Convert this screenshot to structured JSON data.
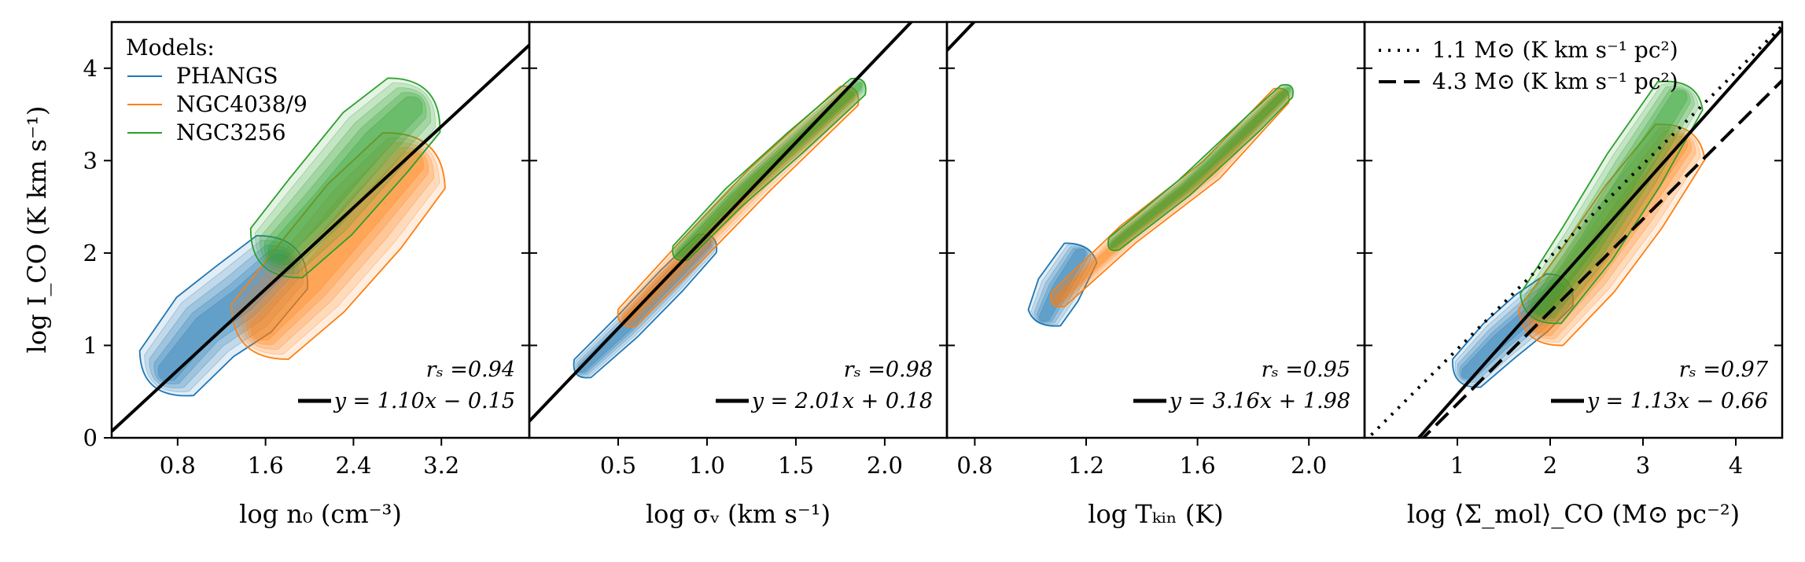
{
  "figure": {
    "ylabel": "log I_CO (K km s⁻¹)",
    "legend_title": "Models:",
    "colors": {
      "PHANGS": "#1f77b4",
      "NGC4038/9": "#ff7f0e",
      "NGC3256": "#2ca02c",
      "fit": "#000000"
    }
  },
  "chart_data": [
    {
      "type": "contour-density",
      "xlabel": "log n₀ (cm⁻³)",
      "xlim": [
        0.2,
        4.0
      ],
      "ylim": [
        0,
        4.5
      ],
      "xticks": [
        "0.8",
        "1.6",
        "2.4",
        "3.2"
      ],
      "xtick_values": [
        0.8,
        1.6,
        2.4,
        3.2
      ],
      "yticks": [
        "0",
        "1",
        "2",
        "3",
        "4"
      ],
      "ytick_values": [
        0,
        1,
        2,
        3,
        4
      ],
      "legend": [
        "PHANGS",
        "NGC4038/9",
        "NGC3256"
      ],
      "rs_label": "rₛ =0.94",
      "fit_label": "y = 1.10x − 0.15",
      "fit": {
        "slope": 1.1,
        "intercept": -0.15
      },
      "series": [
        {
          "name": "PHANGS",
          "x_center": [
            0.7,
            1.05,
            1.4,
            1.75
          ],
          "y_center": [
            0.7,
            1.2,
            1.5,
            1.9
          ],
          "x_spread": 0.5,
          "y_spread": 0.38
        },
        {
          "name": "NGC4038/9",
          "x_center": [
            1.55,
            2.0,
            2.5,
            2.95
          ],
          "y_center": [
            1.15,
            1.7,
            2.4,
            3.0
          ],
          "x_spread": 0.55,
          "y_spread": 0.45
        },
        {
          "name": "NGC3256",
          "x_center": [
            1.7,
            2.1,
            2.6,
            2.95
          ],
          "y_center": [
            2.0,
            2.5,
            3.2,
            3.6
          ],
          "x_spread": 0.5,
          "y_spread": 0.4
        }
      ]
    },
    {
      "type": "contour-density",
      "xlabel": "log σᵥ (km s⁻¹)",
      "xlim": [
        0.0,
        2.35
      ],
      "ylim": [
        0,
        4.5
      ],
      "xticks": [
        "0.5",
        "1.0",
        "1.5",
        "2.0"
      ],
      "xtick_values": [
        0.5,
        1.0,
        1.5,
        2.0
      ],
      "yticks": [
        "0",
        "1",
        "2",
        "3",
        "4"
      ],
      "ytick_values": [
        0,
        1,
        2,
        3,
        4
      ],
      "rs_label": "rₛ =0.98",
      "fit_label": "y = 2.01x + 0.18",
      "fit": {
        "slope": 2.01,
        "intercept": 0.18
      },
      "series": [
        {
          "name": "PHANGS",
          "x_center": [
            0.3,
            0.55,
            0.8,
            1.0
          ],
          "y_center": [
            0.75,
            1.2,
            1.7,
            2.1
          ],
          "x_spread": 0.1,
          "y_spread": 0.15
        },
        {
          "name": "NGC4038/9",
          "x_center": [
            0.55,
            0.9,
            1.3,
            1.8
          ],
          "y_center": [
            1.3,
            2.0,
            2.8,
            3.7
          ],
          "x_spread": 0.1,
          "y_spread": 0.15
        },
        {
          "name": "NGC3256",
          "x_center": [
            0.85,
            1.15,
            1.5,
            1.85
          ],
          "y_center": [
            2.0,
            2.6,
            3.2,
            3.8
          ],
          "x_spread": 0.08,
          "y_spread": 0.13
        }
      ]
    },
    {
      "type": "contour-density",
      "xlabel": "log Tₖᵢₙ (K)",
      "xlim": [
        0.7,
        2.2
      ],
      "ylim": [
        0,
        4.5
      ],
      "xticks": [
        "0.8",
        "1.2",
        "1.6",
        "2.0"
      ],
      "xtick_values": [
        0.8,
        1.2,
        1.6,
        2.0
      ],
      "yticks": [
        "0",
        "1",
        "2",
        "3",
        "4"
      ],
      "ytick_values": [
        0,
        1,
        2,
        3,
        4
      ],
      "rs_label": "rₛ =0.95",
      "fit_label": "y = 3.16x + 1.98",
      "fit": {
        "slope": 3.16,
        "intercept": 1.98
      },
      "series": [
        {
          "name": "PHANGS",
          "x_center": [
            1.05,
            1.1,
            1.18
          ],
          "y_center": [
            1.3,
            1.6,
            2.0
          ],
          "x_spread": 0.05,
          "y_spread": 0.35
        },
        {
          "name": "NGC4038/9",
          "x_center": [
            1.1,
            1.35,
            1.65,
            1.9
          ],
          "y_center": [
            1.5,
            2.2,
            2.9,
            3.7
          ],
          "x_spread": 0.05,
          "y_spread": 0.12
        },
        {
          "name": "NGC3256",
          "x_center": [
            1.3,
            1.55,
            1.8,
            1.92
          ],
          "y_center": [
            2.1,
            2.7,
            3.4,
            3.75
          ],
          "x_spread": 0.04,
          "y_spread": 0.1
        }
      ]
    },
    {
      "type": "contour-density",
      "xlabel": "log ⟨Σ_mol⟩_CO (M⊙ pc⁻²)",
      "xlim": [
        0.0,
        4.5
      ],
      "ylim": [
        0,
        4.5
      ],
      "xticks": [
        "1",
        "2",
        "3",
        "4"
      ],
      "xtick_values": [
        1,
        2,
        3,
        4
      ],
      "yticks": [
        "0",
        "1",
        "2",
        "3",
        "4"
      ],
      "ytick_values": [
        0,
        1,
        2,
        3,
        4
      ],
      "legend": [
        "1.1 M⊙ (K km s⁻¹ pc²)",
        "4.3 M⊙ (K km s⁻¹ pc²)"
      ],
      "rs_label": "rₛ =0.97",
      "fit_label": "y = 1.13x − 0.66",
      "fit": {
        "slope": 1.13,
        "intercept": -0.66
      },
      "ref_lines": [
        {
          "name": "1.1 M⊙ (K km s⁻¹ pc²)",
          "slope": 1.0,
          "intercept": -0.041,
          "dash": "dotted"
        },
        {
          "name": "4.3 M⊙ (K km s⁻¹ pc²)",
          "slope": 1.0,
          "intercept": -0.633,
          "dash": "dashed"
        }
      ],
      "series": [
        {
          "name": "PHANGS",
          "x_center": [
            1.1,
            1.45,
            1.8,
            2.1
          ],
          "y_center": [
            0.7,
            1.05,
            1.35,
            1.6
          ],
          "x_spread": 0.3,
          "y_spread": 0.25
        },
        {
          "name": "NGC4038/9",
          "x_center": [
            1.9,
            2.4,
            2.9,
            3.4
          ],
          "y_center": [
            1.2,
            1.8,
            2.5,
            3.2
          ],
          "x_spread": 0.4,
          "y_spread": 0.4
        },
        {
          "name": "NGC3256",
          "x_center": [
            1.9,
            2.4,
            2.9,
            3.4
          ],
          "y_center": [
            1.4,
            2.1,
            2.9,
            3.7
          ],
          "x_spread": 0.35,
          "y_spread": 0.35
        }
      ]
    }
  ]
}
